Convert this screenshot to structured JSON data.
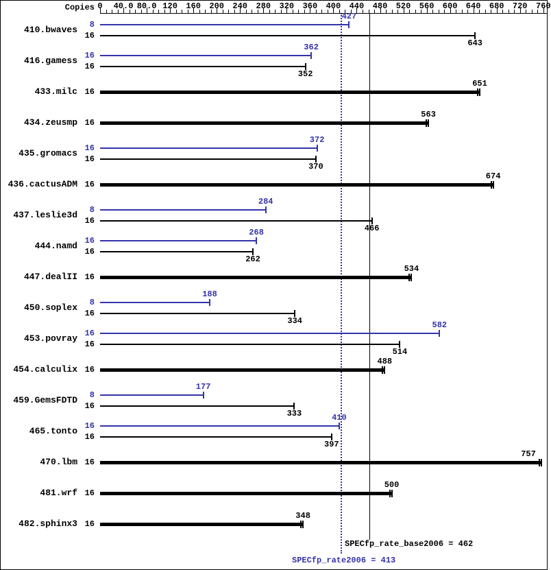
{
  "chart_data": {
    "type": "bar",
    "orientation": "horizontal",
    "copies_header": "Copies",
    "axis": {
      "min": 0,
      "max": 770,
      "minor_tick_interval": 10,
      "major_ticks": [
        0,
        40,
        80,
        120,
        160,
        200,
        240,
        280,
        320,
        360,
        400,
        440,
        480,
        520,
        560,
        600,
        640,
        680,
        720,
        760
      ],
      "tick_labels": [
        "0",
        "40.0",
        "80.0",
        "120",
        "160",
        "200",
        "240",
        "280",
        "320",
        "360",
        "400",
        "440",
        "480",
        "520",
        "560",
        "600",
        "640",
        "680",
        "720",
        "760"
      ]
    },
    "colors": {
      "peak": "#3333aa",
      "base": "#000000"
    },
    "reference_lines": [
      {
        "label": "SPECfp_rate_base2006 = 462",
        "value": 462,
        "style": "solid",
        "color": "#000000"
      },
      {
        "label": "SPECfp_rate2006 = 413",
        "value": 413,
        "style": "dotted",
        "color": "#3333aa"
      }
    ],
    "benchmarks": [
      {
        "name": "410.bwaves",
        "bars": [
          {
            "copies": "8",
            "value": 427,
            "type": "peak"
          },
          {
            "copies": "16",
            "value": 643,
            "type": "base"
          }
        ]
      },
      {
        "name": "416.gamess",
        "bars": [
          {
            "copies": "16",
            "value": 362,
            "type": "peak"
          },
          {
            "copies": "16",
            "value": 352,
            "type": "base"
          }
        ]
      },
      {
        "name": "433.milc",
        "bars": [
          {
            "copies": "16",
            "value": 651,
            "type": "base-only"
          }
        ]
      },
      {
        "name": "434.zeusmp",
        "bars": [
          {
            "copies": "16",
            "value": 563,
            "type": "base-only"
          }
        ]
      },
      {
        "name": "435.gromacs",
        "bars": [
          {
            "copies": "16",
            "value": 372,
            "type": "peak"
          },
          {
            "copies": "16",
            "value": 370,
            "type": "base"
          }
        ]
      },
      {
        "name": "436.cactusADM",
        "bars": [
          {
            "copies": "16",
            "value": 674,
            "type": "base-only"
          }
        ]
      },
      {
        "name": "437.leslie3d",
        "bars": [
          {
            "copies": "8",
            "value": 284,
            "type": "peak"
          },
          {
            "copies": "16",
            "value": 466,
            "type": "base"
          }
        ]
      },
      {
        "name": "444.namd",
        "bars": [
          {
            "copies": "16",
            "value": 268,
            "type": "peak"
          },
          {
            "copies": "16",
            "value": 262,
            "type": "base"
          }
        ]
      },
      {
        "name": "447.dealII",
        "bars": [
          {
            "copies": "16",
            "value": 534,
            "type": "base-only"
          }
        ]
      },
      {
        "name": "450.soplex",
        "bars": [
          {
            "copies": "8",
            "value": 188,
            "type": "peak"
          },
          {
            "copies": "16",
            "value": 334,
            "type": "base"
          }
        ]
      },
      {
        "name": "453.povray",
        "bars": [
          {
            "copies": "16",
            "value": 582,
            "type": "peak"
          },
          {
            "copies": "16",
            "value": 514,
            "type": "base"
          }
        ]
      },
      {
        "name": "454.calculix",
        "bars": [
          {
            "copies": "16",
            "value": 488,
            "type": "base-only"
          }
        ]
      },
      {
        "name": "459.GemsFDTD",
        "bars": [
          {
            "copies": "8",
            "value": 177,
            "type": "peak"
          },
          {
            "copies": "16",
            "value": 333,
            "type": "base"
          }
        ]
      },
      {
        "name": "465.tonto",
        "bars": [
          {
            "copies": "16",
            "value": 410,
            "type": "peak"
          },
          {
            "copies": "16",
            "value": 397,
            "type": "base"
          }
        ]
      },
      {
        "name": "470.lbm",
        "bars": [
          {
            "copies": "16",
            "value": 757,
            "type": "base-only"
          }
        ]
      },
      {
        "name": "481.wrf",
        "bars": [
          {
            "copies": "16",
            "value": 500,
            "type": "base-only"
          }
        ]
      },
      {
        "name": "482.sphinx3",
        "bars": [
          {
            "copies": "16",
            "value": 348,
            "type": "base-only"
          }
        ]
      }
    ]
  }
}
